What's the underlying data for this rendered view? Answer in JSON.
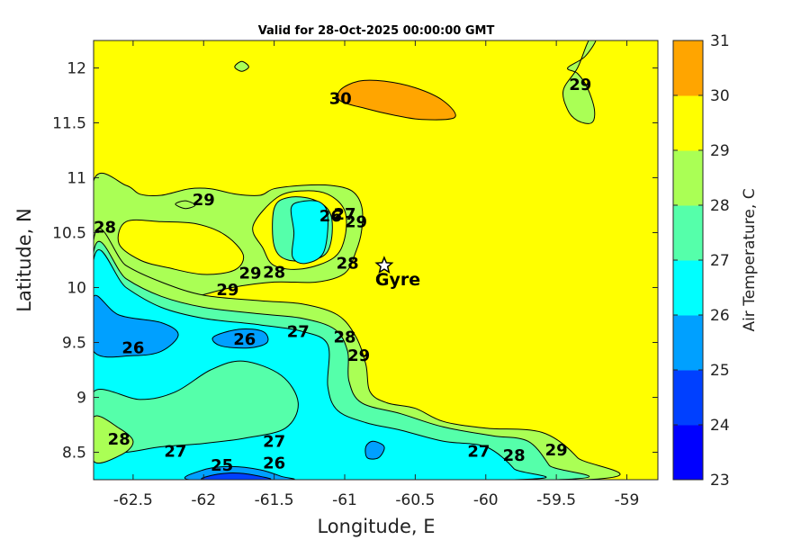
{
  "chart_data": {
    "type": "contour",
    "title": "Valid for 28-Oct-2025 00:00:00 GMT",
    "xlabel": "Longitude, E",
    "ylabel": "Latitude, N",
    "xlim": [
      -62.78,
      -58.78
    ],
    "ylim": [
      8.25,
      12.25
    ],
    "xticks": [
      -62.5,
      -62,
      -61.5,
      -61,
      -60.5,
      -60,
      -59.5,
      -59
    ],
    "xtick_labels": [
      "-62.5",
      "-62",
      "-61.5",
      "-61",
      "-60.5",
      "-60",
      "-59.5",
      "-59"
    ],
    "yticks": [
      8.5,
      9,
      9.5,
      10,
      10.5,
      11,
      11.5,
      12
    ],
    "ytick_labels": [
      "8.5",
      "9",
      "9.5",
      "10",
      "10.5",
      "11",
      "11.5",
      "12"
    ],
    "colorbar": {
      "label": "Air Temperature, C",
      "levels": [
        23,
        24,
        25,
        26,
        27,
        28,
        29,
        30,
        31
      ],
      "tick_labels": [
        "23",
        "24",
        "25",
        "26",
        "27",
        "28",
        "29",
        "30",
        "31"
      ],
      "colors": [
        "#0000ff",
        "#0040ff",
        "#00a0ff",
        "#00ffff",
        "#55ffaa",
        "#aaff55",
        "#ffff00",
        "#ffa500",
        "#ff5500"
      ]
    },
    "contour_labels": [
      {
        "text": "30",
        "lon": -61.03,
        "lat": 11.72
      },
      {
        "text": "29",
        "lon": -59.33,
        "lat": 11.85
      },
      {
        "text": "29",
        "lon": -62.0,
        "lat": 10.8
      },
      {
        "text": "28",
        "lon": -62.7,
        "lat": 10.55
      },
      {
        "text": "26",
        "lon": -61.1,
        "lat": 10.65
      },
      {
        "text": "27",
        "lon": -61.0,
        "lat": 10.67
      },
      {
        "text": "29",
        "lon": -60.92,
        "lat": 10.6
      },
      {
        "text": "29",
        "lon": -61.67,
        "lat": 10.13
      },
      {
        "text": "28",
        "lon": -61.5,
        "lat": 10.14
      },
      {
        "text": "28",
        "lon": -60.98,
        "lat": 10.22
      },
      {
        "text": "29",
        "lon": -61.83,
        "lat": 9.98
      },
      {
        "text": "26",
        "lon": -62.5,
        "lat": 9.45
      },
      {
        "text": "26",
        "lon": -61.71,
        "lat": 9.53
      },
      {
        "text": "27",
        "lon": -61.33,
        "lat": 9.6
      },
      {
        "text": "28",
        "lon": -61.0,
        "lat": 9.55
      },
      {
        "text": "29",
        "lon": -60.9,
        "lat": 9.38
      },
      {
        "text": "28",
        "lon": -62.6,
        "lat": 8.62
      },
      {
        "text": "27",
        "lon": -62.2,
        "lat": 8.51
      },
      {
        "text": "27",
        "lon": -61.5,
        "lat": 8.6
      },
      {
        "text": "25",
        "lon": -61.87,
        "lat": 8.38
      },
      {
        "text": "26",
        "lon": -61.5,
        "lat": 8.4
      },
      {
        "text": "27",
        "lon": -60.05,
        "lat": 8.51
      },
      {
        "text": "28",
        "lon": -59.8,
        "lat": 8.47
      },
      {
        "text": "29",
        "lon": -59.5,
        "lat": 8.52
      }
    ],
    "stations": [
      {
        "name": "Gyre",
        "lon": -60.72,
        "lat": 10.2
      }
    ],
    "regions": [
      {
        "level": 30,
        "points": [
          [
            -61.03,
            11.8
          ],
          [
            -60.9,
            11.88
          ],
          [
            -60.72,
            11.88
          ],
          [
            -60.5,
            11.82
          ],
          [
            -60.3,
            11.7
          ],
          [
            -60.22,
            11.55
          ],
          [
            -60.45,
            11.53
          ],
          [
            -60.65,
            11.57
          ],
          [
            -60.85,
            11.63
          ],
          [
            -61.03,
            11.7
          ]
        ]
      },
      {
        "level": 28,
        "points": [
          [
            -59.42,
            12.0
          ],
          [
            -59.35,
            11.95
          ],
          [
            -59.28,
            11.82
          ],
          [
            -59.23,
            11.62
          ],
          [
            -59.25,
            11.5
          ],
          [
            -59.35,
            11.52
          ],
          [
            -59.42,
            11.62
          ],
          [
            -59.45,
            11.8
          ],
          [
            -59.35,
            12.0
          ],
          [
            -59.27,
            12.25
          ],
          [
            -59.22,
            12.25
          ],
          [
            -59.3,
            12.1
          ]
        ]
      },
      {
        "level": 28,
        "points": [
          [
            -61.78,
            12.01
          ],
          [
            -61.73,
            12.06
          ],
          [
            -61.68,
            12.01
          ],
          [
            -61.73,
            11.97
          ]
        ]
      },
      {
        "level": 28,
        "points": [
          [
            -62.78,
            10.97
          ],
          [
            -62.55,
            10.93
          ],
          [
            -62.45,
            10.85
          ],
          [
            -62.3,
            10.84
          ],
          [
            -62.1,
            10.9
          ],
          [
            -61.95,
            10.9
          ],
          [
            -61.77,
            10.85
          ],
          [
            -61.6,
            10.84
          ],
          [
            -61.5,
            10.9
          ],
          [
            -61.3,
            10.93
          ],
          [
            -61.1,
            10.93
          ],
          [
            -60.95,
            10.88
          ],
          [
            -60.88,
            10.74
          ],
          [
            -60.88,
            10.52
          ],
          [
            -60.92,
            10.33
          ],
          [
            -61.0,
            10.13
          ],
          [
            -61.2,
            10.05
          ],
          [
            -61.5,
            10.05
          ],
          [
            -61.8,
            10.0
          ],
          [
            -62.05,
            9.92
          ],
          [
            -62.3,
            9.86
          ],
          [
            -62.5,
            9.83
          ],
          [
            -62.78,
            9.88
          ]
        ]
      },
      {
        "level": 29,
        "points": [
          [
            -62.55,
            10.6
          ],
          [
            -62.3,
            10.6
          ],
          [
            -62.05,
            10.58
          ],
          [
            -61.85,
            10.48
          ],
          [
            -61.72,
            10.3
          ],
          [
            -61.78,
            10.16
          ],
          [
            -62.0,
            10.12
          ],
          [
            -62.25,
            10.18
          ],
          [
            -62.45,
            10.25
          ],
          [
            -62.6,
            10.4
          ]
        ]
      },
      {
        "level": 29,
        "points": [
          [
            -61.65,
            10.56
          ],
          [
            -61.48,
            10.82
          ],
          [
            -61.3,
            10.88
          ],
          [
            -61.12,
            10.85
          ],
          [
            -61.0,
            10.7
          ],
          [
            -61.0,
            10.45
          ],
          [
            -61.08,
            10.27
          ],
          [
            -61.3,
            10.17
          ],
          [
            -61.5,
            10.2
          ],
          [
            -61.58,
            10.36
          ]
        ]
      },
      {
        "level": 27,
        "points": [
          [
            -61.5,
            10.72
          ],
          [
            -61.4,
            10.82
          ],
          [
            -61.22,
            10.8
          ],
          [
            -61.1,
            10.67
          ],
          [
            -61.1,
            10.4
          ],
          [
            -61.18,
            10.27
          ],
          [
            -61.4,
            10.25
          ],
          [
            -61.5,
            10.38
          ]
        ]
      },
      {
        "level": 26,
        "points": [
          [
            -61.38,
            10.72
          ],
          [
            -61.32,
            10.78
          ],
          [
            -61.18,
            10.78
          ],
          [
            -61.12,
            10.65
          ],
          [
            -61.15,
            10.32
          ],
          [
            -61.28,
            10.22
          ],
          [
            -61.37,
            10.28
          ],
          [
            -61.36,
            10.5
          ]
        ]
      },
      {
        "level": 28,
        "points": [
          [
            -62.2,
            10.76
          ],
          [
            -62.13,
            10.79
          ],
          [
            -62.06,
            10.75
          ],
          [
            -62.13,
            10.72
          ]
        ]
      },
      {
        "level": 28,
        "points": [
          [
            -62.78,
            10.43
          ],
          [
            -62.55,
            10.2
          ],
          [
            -62.3,
            10.05
          ],
          [
            -62.0,
            9.93
          ],
          [
            -61.6,
            9.88
          ],
          [
            -61.3,
            9.85
          ],
          [
            -61.05,
            9.75
          ],
          [
            -60.92,
            9.55
          ],
          [
            -60.85,
            9.3
          ],
          [
            -60.82,
            9.05
          ],
          [
            -60.7,
            8.95
          ],
          [
            -60.5,
            8.9
          ],
          [
            -60.3,
            8.78
          ],
          [
            -60.0,
            8.72
          ],
          [
            -59.6,
            8.68
          ],
          [
            -59.35,
            8.45
          ],
          [
            -59.3,
            8.25
          ],
          [
            -62.78,
            8.25
          ]
        ]
      },
      {
        "level": 27,
        "points": [
          [
            -62.78,
            10.32
          ],
          [
            -62.55,
            10.08
          ],
          [
            -62.3,
            9.92
          ],
          [
            -62.0,
            9.82
          ],
          [
            -61.6,
            9.76
          ],
          [
            -61.3,
            9.72
          ],
          [
            -61.07,
            9.62
          ],
          [
            -60.98,
            9.42
          ],
          [
            -60.97,
            9.15
          ],
          [
            -60.88,
            8.95
          ],
          [
            -60.6,
            8.85
          ],
          [
            -60.3,
            8.73
          ],
          [
            -59.95,
            8.65
          ],
          [
            -59.7,
            8.6
          ],
          [
            -59.55,
            8.38
          ],
          [
            -59.5,
            8.25
          ],
          [
            -62.78,
            8.25
          ]
        ]
      },
      {
        "level": 26,
        "points": [
          [
            -62.78,
            10.25
          ],
          [
            -62.55,
            10.0
          ],
          [
            -62.3,
            9.82
          ],
          [
            -62.0,
            9.72
          ],
          [
            -61.6,
            9.66
          ],
          [
            -61.3,
            9.6
          ],
          [
            -61.12,
            9.48
          ],
          [
            -61.12,
            9.1
          ],
          [
            -61.05,
            8.88
          ],
          [
            -60.85,
            8.77
          ],
          [
            -60.6,
            8.7
          ],
          [
            -60.3,
            8.6
          ],
          [
            -60.0,
            8.55
          ],
          [
            -59.8,
            8.35
          ],
          [
            -59.8,
            8.25
          ],
          [
            -62.78,
            8.25
          ]
        ]
      },
      {
        "level": 27,
        "points": [
          [
            -62.78,
            9.05
          ],
          [
            -62.45,
            8.98
          ],
          [
            -62.2,
            9.05
          ],
          [
            -61.95,
            9.25
          ],
          [
            -61.72,
            9.33
          ],
          [
            -61.45,
            9.2
          ],
          [
            -61.33,
            8.95
          ],
          [
            -61.42,
            8.72
          ],
          [
            -61.7,
            8.63
          ],
          [
            -62.0,
            8.58
          ],
          [
            -62.3,
            8.55
          ],
          [
            -62.55,
            8.5
          ],
          [
            -62.78,
            8.5
          ]
        ]
      },
      {
        "level": 28,
        "points": [
          [
            -62.78,
            8.82
          ],
          [
            -62.6,
            8.72
          ],
          [
            -62.5,
            8.6
          ],
          [
            -62.58,
            8.48
          ],
          [
            -62.78,
            8.42
          ]
        ]
      },
      {
        "level": 25,
        "points": [
          [
            -62.78,
            9.92
          ],
          [
            -62.6,
            9.75
          ],
          [
            -62.3,
            9.68
          ],
          [
            -62.18,
            9.57
          ],
          [
            -62.3,
            9.42
          ],
          [
            -62.5,
            9.38
          ],
          [
            -62.78,
            9.42
          ]
        ]
      },
      {
        "level": 25,
        "points": [
          [
            -61.93,
            9.55
          ],
          [
            -61.75,
            9.62
          ],
          [
            -61.58,
            9.6
          ],
          [
            -61.55,
            9.5
          ],
          [
            -61.68,
            9.45
          ],
          [
            -61.88,
            9.47
          ]
        ]
      },
      {
        "level": 25,
        "points": [
          [
            -60.85,
            8.55
          ],
          [
            -60.8,
            8.6
          ],
          [
            -60.72,
            8.55
          ],
          [
            -60.76,
            8.45
          ],
          [
            -60.84,
            8.45
          ]
        ]
      },
      {
        "level": 25,
        "points": [
          [
            -62.1,
            8.25
          ],
          [
            -62.0,
            8.34
          ],
          [
            -61.8,
            8.37
          ],
          [
            -61.6,
            8.34
          ],
          [
            -61.45,
            8.28
          ],
          [
            -61.4,
            8.25
          ]
        ]
      },
      {
        "level": 24,
        "points": [
          [
            -62.0,
            8.25
          ],
          [
            -61.9,
            8.3
          ],
          [
            -61.75,
            8.31
          ],
          [
            -61.6,
            8.28
          ],
          [
            -61.55,
            8.25
          ]
        ]
      }
    ]
  }
}
